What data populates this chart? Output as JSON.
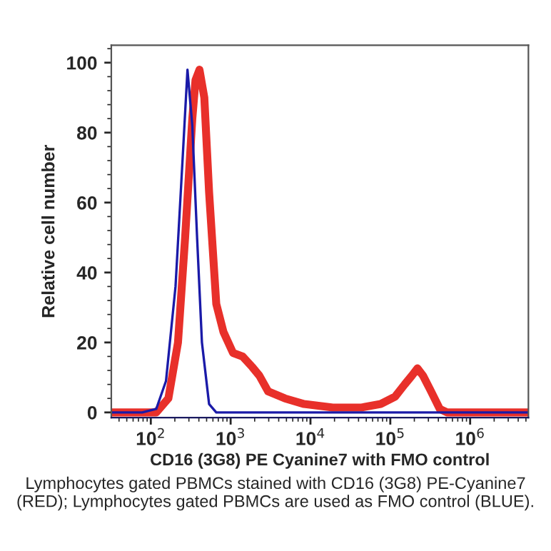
{
  "chart_data": {
    "type": "line",
    "xlabel": "CD16 (3G8) PE Cyanine7 with FMO control",
    "ylabel": "Relative cell number",
    "annotations": [
      "Lymphocytes gated PBMCs stained with CD16 (3G8) PE-Cyanine7 (RED); Lymphocytes gated PBMCs are used as FMO control (BLUE)."
    ],
    "log": "x",
    "grid": false,
    "legend": false,
    "marker": "none",
    "line_style": "solid",
    "xlim": [
      32,
      5370000
    ],
    "ylim": [
      -1.5,
      105
    ],
    "xticks": [
      {
        "value": 100,
        "label": "10$^{2}$"
      },
      {
        "value": 1000,
        "label": "10$^{3}$"
      },
      {
        "value": 10000,
        "label": "10$^{4}$"
      },
      {
        "value": 100000,
        "label": "10$^{5}$"
      },
      {
        "value": 1000000,
        "label": "10$^{6}$"
      }
    ],
    "yticks": [
      0,
      20,
      40,
      60,
      80,
      100
    ],
    "series": [
      {
        "color": "#e8302a",
        "x": [
          32,
          117,
          166,
          219,
          269,
          331,
          363,
          407,
          468,
          537,
          661,
          813,
          1072,
          1413,
          1862,
          2291,
          2951,
          4786,
          8318,
          19050,
          43650,
          75860,
          114800,
          151400,
          186200,
          218800,
          257000,
          316200,
          416900,
          512900,
          5370000
        ],
        "values": [
          0,
          0,
          4,
          20,
          50,
          84,
          95,
          98,
          90,
          63,
          31,
          23,
          17,
          16,
          13,
          10.5,
          6,
          4,
          2.4,
          1.4,
          1.4,
          2.4,
          4.5,
          8,
          10.5,
          12.6,
          10.5,
          6.5,
          1,
          0,
          0
        ]
      },
      {
        "color": "#1a1aa8",
        "x": [
          32,
          78,
          117,
          155,
          204,
          251,
          288,
          331,
          380,
          437,
          537,
          661,
          5370000
        ],
        "values": [
          0,
          0,
          1,
          9,
          36,
          73,
          98,
          82,
          50,
          20,
          2.4,
          0,
          0
        ]
      }
    ]
  }
}
